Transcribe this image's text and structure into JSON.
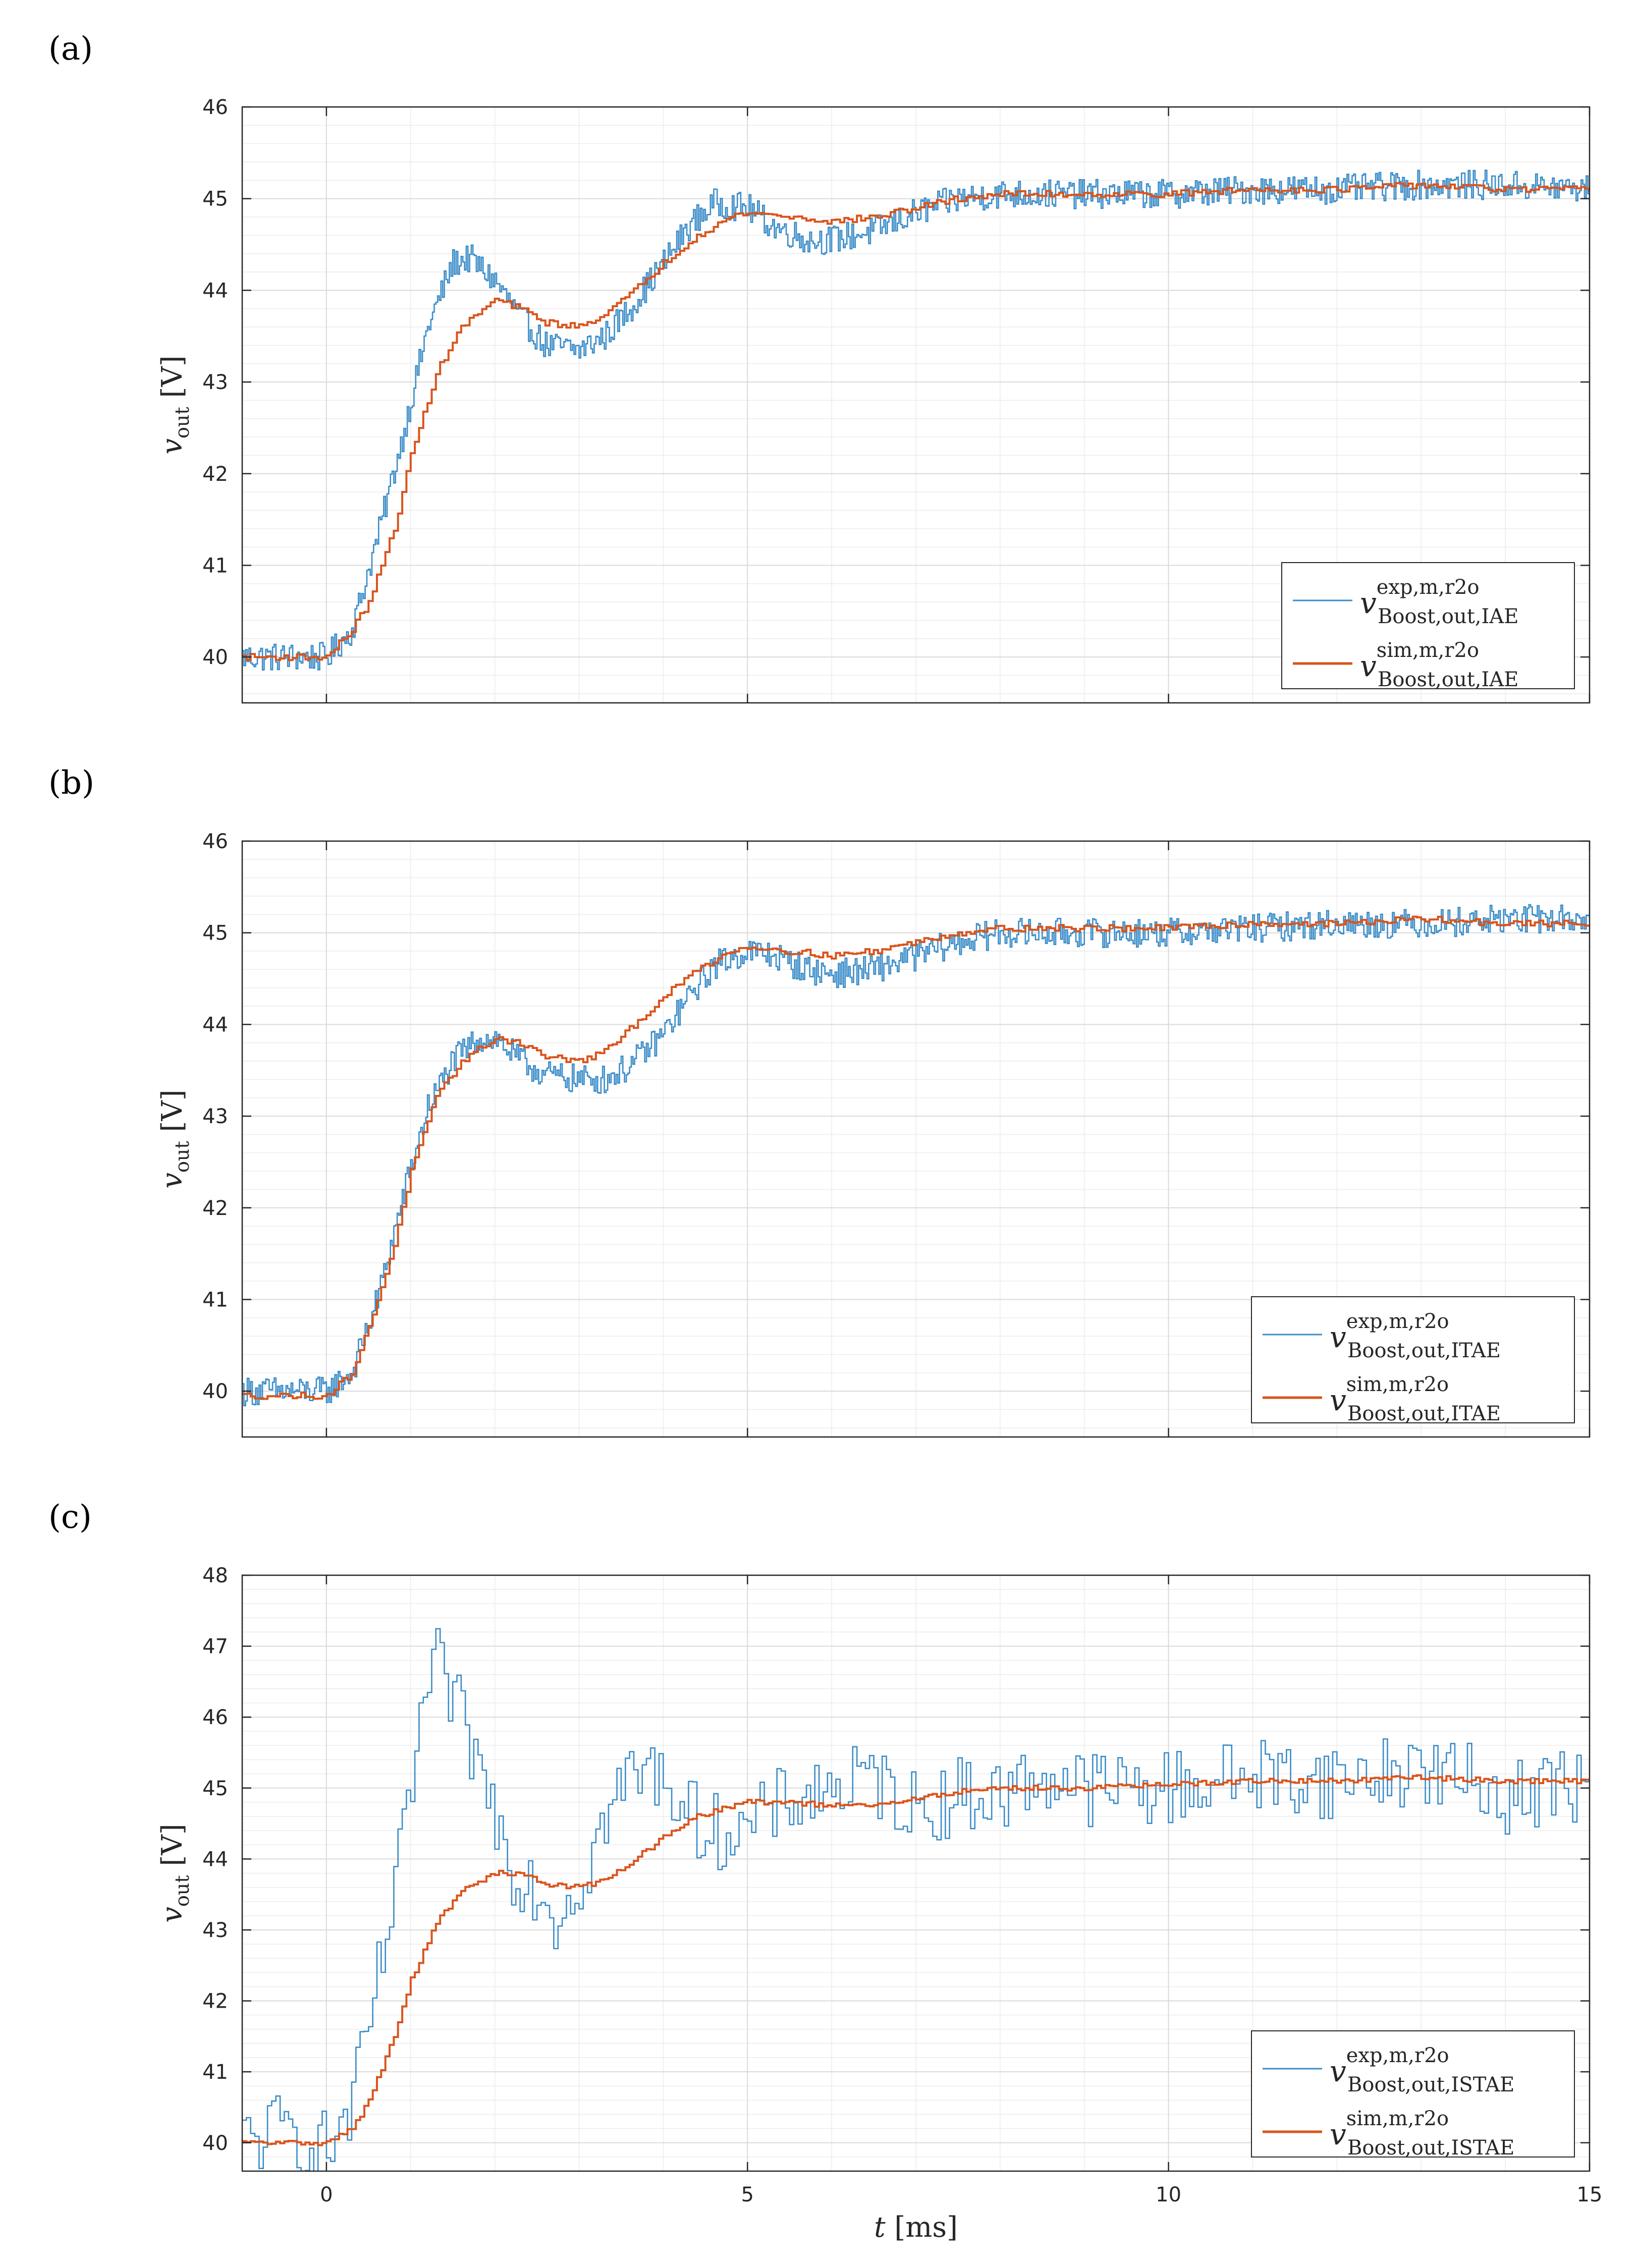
{
  "panels": [
    {
      "label": "(a)",
      "letter": "a"
    },
    {
      "label": "(b)",
      "letter": "b"
    },
    {
      "label": "(c)",
      "letter": "c"
    }
  ],
  "colors": {
    "exp": "#3a8cc8",
    "sim": "#d9541c",
    "grid_major": "#dadada",
    "grid_minor": "#ececec"
  },
  "chart_data": [
    {
      "type": "line",
      "panel": "a",
      "title": "",
      "xlabel": "t [ms]",
      "ylabel": "v_out [V]",
      "ylabel_main": "v",
      "ylabel_sub": "out",
      "ylabel_unit": "[V]",
      "xlim": [
        -1,
        15
      ],
      "ylim": [
        39.5,
        46
      ],
      "xticks": [
        0,
        5,
        10,
        15
      ],
      "yticks": [
        40,
        41,
        42,
        43,
        44,
        45,
        46
      ],
      "show_xtick_labels": false,
      "legend_position": "bottom-right",
      "series": [
        {
          "name": "v_Boost,out,IAE^exp,m,r2o",
          "legend_sup": "exp,m,r2o",
          "legend_sub": "Boost,out,IAE",
          "color": "#3a8cc8",
          "x": [
            -1,
            0,
            0.3,
            0.6,
            0.9,
            1.2,
            1.5,
            1.7,
            2.0,
            2.3,
            2.6,
            3.0,
            3.3,
            3.6,
            4.0,
            4.3,
            4.6,
            5.0,
            5.3,
            5.7,
            6.0,
            6.5,
            7.0,
            7.5,
            8,
            9,
            10,
            11,
            12,
            13,
            14,
            15
          ],
          "y": [
            40.0,
            40.0,
            40.3,
            41.3,
            42.4,
            43.6,
            44.3,
            44.35,
            44.1,
            43.7,
            43.4,
            43.35,
            43.5,
            43.8,
            44.3,
            44.7,
            44.95,
            44.9,
            44.7,
            44.55,
            44.55,
            44.65,
            44.85,
            45.0,
            45.05,
            45.05,
            45.05,
            45.1,
            45.1,
            45.15,
            45.15,
            45.1
          ]
        },
        {
          "name": "v_Boost,out,IAE^sim,m,r2o",
          "legend_sup": "sim,m,r2o",
          "legend_sub": "Boost,out,IAE",
          "color": "#d9541c",
          "x": [
            -1,
            0,
            0.3,
            0.5,
            0.8,
            1.0,
            1.3,
            1.6,
            2.0,
            2.3,
            2.6,
            3.0,
            3.3,
            3.6,
            4.0,
            4.4,
            4.8,
            5.0,
            5.5,
            6.0,
            6.5,
            7.0,
            7.5,
            8,
            9,
            10,
            11,
            12,
            13,
            14,
            15
          ],
          "y": [
            40.0,
            40.0,
            40.3,
            40.6,
            41.4,
            42.2,
            43.1,
            43.6,
            43.9,
            43.8,
            43.65,
            43.6,
            43.75,
            43.95,
            44.3,
            44.6,
            44.8,
            44.85,
            44.8,
            44.75,
            44.8,
            44.9,
            45.0,
            45.05,
            45.05,
            45.05,
            45.1,
            45.1,
            45.15,
            45.1,
            45.1
          ]
        }
      ]
    },
    {
      "type": "line",
      "panel": "b",
      "title": "",
      "xlabel": "t [ms]",
      "ylabel": "v_out [V]",
      "ylabel_main": "v",
      "ylabel_sub": "out",
      "ylabel_unit": "[V]",
      "xlim": [
        -1,
        15
      ],
      "ylim": [
        39.5,
        46
      ],
      "xticks": [
        0,
        5,
        10,
        15
      ],
      "yticks": [
        40,
        41,
        42,
        43,
        44,
        45,
        46
      ],
      "show_xtick_labels": false,
      "legend_position": "bottom-right",
      "series": [
        {
          "name": "v_Boost,out,ITAE^exp,m,r2o",
          "legend_sup": "exp,m,r2o",
          "legend_sub": "Boost,out,ITAE",
          "color": "#3a8cc8",
          "x": [
            -1,
            0,
            0.3,
            0.6,
            0.9,
            1.2,
            1.5,
            1.8,
            2.0,
            2.3,
            2.6,
            3.0,
            3.3,
            3.6,
            4.0,
            4.3,
            4.6,
            5.0,
            5.3,
            5.7,
            6.0,
            6.5,
            7.0,
            7.5,
            8,
            9,
            10,
            11,
            12,
            13,
            14,
            15
          ],
          "y": [
            40.0,
            40.0,
            40.2,
            41.0,
            42.1,
            43.1,
            43.6,
            43.85,
            43.85,
            43.6,
            43.45,
            43.4,
            43.4,
            43.55,
            43.9,
            44.3,
            44.65,
            44.8,
            44.75,
            44.6,
            44.55,
            44.6,
            44.75,
            44.9,
            45.0,
            45.0,
            45.0,
            45.05,
            45.1,
            45.1,
            45.15,
            45.15
          ]
        },
        {
          "name": "v_Boost,out,ITAE^sim,m,r2o",
          "legend_sup": "sim,m,r2o",
          "legend_sub": "Boost,out,ITAE",
          "color": "#d9541c",
          "x": [
            -1,
            0,
            0.3,
            0.5,
            0.8,
            1.0,
            1.3,
            1.6,
            2.0,
            2.3,
            2.6,
            3.0,
            3.3,
            3.6,
            4.0,
            4.4,
            4.8,
            5.0,
            5.5,
            6.0,
            6.5,
            7.0,
            7.5,
            8,
            9,
            10,
            11,
            12,
            13,
            14,
            15
          ],
          "y": [
            39.95,
            39.95,
            40.2,
            40.7,
            41.6,
            42.4,
            43.2,
            43.6,
            43.85,
            43.8,
            43.65,
            43.6,
            43.7,
            43.95,
            44.3,
            44.6,
            44.8,
            44.85,
            44.8,
            44.75,
            44.8,
            44.9,
            45.0,
            45.05,
            45.05,
            45.05,
            45.1,
            45.1,
            45.15,
            45.1,
            45.1
          ]
        }
      ]
    },
    {
      "type": "line",
      "panel": "c",
      "title": "",
      "xlabel": "t [ms]",
      "xlabel_main": "t",
      "xlabel_unit": "[ms]",
      "ylabel": "v_out [V]",
      "ylabel_main": "v",
      "ylabel_sub": "out",
      "ylabel_unit": "[V]",
      "xlim": [
        -1,
        15
      ],
      "ylim": [
        39.6,
        48
      ],
      "xticks": [
        0,
        5,
        10,
        15
      ],
      "yticks": [
        40,
        41,
        42,
        43,
        44,
        45,
        46,
        47,
        48
      ],
      "show_xtick_labels": true,
      "legend_position": "bottom-right",
      "series": [
        {
          "name": "v_Boost,out,ISTAE^exp,m,r2o",
          "legend_sup": "exp,m,r2o",
          "legend_sub": "Boost,out,ISTAE",
          "color": "#3a8cc8",
          "x": [
            -1,
            -0.5,
            0,
            0.3,
            0.6,
            0.9,
            1.1,
            1.3,
            1.5,
            1.7,
            2.0,
            2.2,
            2.5,
            2.7,
            3.0,
            3.3,
            3.6,
            4.0,
            4.3,
            4.6,
            5.0,
            5.3,
            5.6,
            6.0,
            6.5,
            7.0,
            7.5,
            8.0,
            8.5,
            9.0,
            10,
            11,
            12,
            13,
            14,
            15
          ],
          "y": [
            40.0,
            40.2,
            39.9,
            40.5,
            42.3,
            44.2,
            46.0,
            46.7,
            46.2,
            45.6,
            44.6,
            43.9,
            43.6,
            43.2,
            43.7,
            44.6,
            45.2,
            45.2,
            44.6,
            44.4,
            44.4,
            44.7,
            44.9,
            45.0,
            45.1,
            44.7,
            44.9,
            44.9,
            45.2,
            45.0,
            45.0,
            45.2,
            45.1,
            45.3,
            44.9,
            45.1
          ]
        },
        {
          "name": "v_Boost,out,ISTAE^sim,m,r2o",
          "legend_sup": "sim,m,r2o",
          "legend_sub": "Boost,out,ISTAE",
          "color": "#d9541c",
          "x": [
            -1,
            -0.5,
            0,
            0.3,
            0.5,
            0.8,
            1.0,
            1.3,
            1.6,
            2.0,
            2.3,
            2.6,
            3.0,
            3.3,
            3.6,
            4.0,
            4.4,
            4.8,
            5.0,
            5.5,
            6.0,
            6.5,
            7.0,
            7.5,
            8,
            9,
            10,
            11,
            12,
            13,
            14,
            15
          ],
          "y": [
            40.0,
            40.0,
            40.0,
            40.2,
            40.6,
            41.5,
            42.3,
            43.1,
            43.55,
            43.8,
            43.8,
            43.65,
            43.6,
            43.7,
            43.95,
            44.3,
            44.6,
            44.75,
            44.8,
            44.8,
            44.75,
            44.75,
            44.85,
            44.95,
            45.0,
            45.0,
            45.05,
            45.1,
            45.1,
            45.15,
            45.1,
            45.1
          ]
        }
      ]
    }
  ]
}
